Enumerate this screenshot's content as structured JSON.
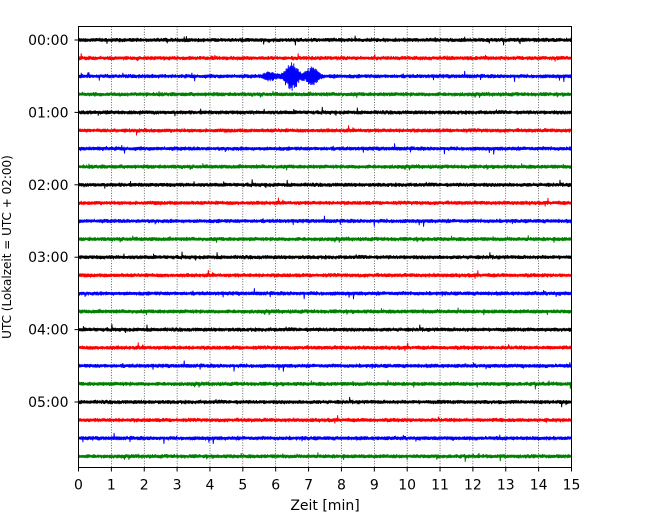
{
  "chart_data": {
    "type": "line",
    "title": "",
    "xlabel": "Zeit  [min]",
    "ylabel": "UTC (Lokalzeit = UTC + 02:00)",
    "xlim": [
      0,
      15
    ],
    "x_ticks": [
      0,
      1,
      2,
      3,
      4,
      5,
      6,
      7,
      8,
      9,
      10,
      11,
      12,
      13,
      14,
      15
    ],
    "y_tick_labels": [
      "00:00",
      "01:00",
      "02:00",
      "03:00",
      "04:00",
      "05:00"
    ],
    "y_tick_rows": [
      0,
      4,
      8,
      12,
      16,
      20
    ],
    "grid": "vertical dotted at each minute",
    "row_minutes": 15,
    "row_colors": [
      "#000000",
      "#ff0000",
      "#0000ff",
      "#008000"
    ],
    "rows": [
      {
        "start": "00:00",
        "color": "#000000"
      },
      {
        "start": "00:15",
        "color": "#ff0000"
      },
      {
        "start": "00:30",
        "color": "#0000ff",
        "event": {
          "center_min": 6.6,
          "extent_min": [
            5.0,
            8.3
          ],
          "peak_half_amplitude": 12
        }
      },
      {
        "start": "00:45",
        "color": "#008000"
      },
      {
        "start": "01:00",
        "color": "#000000"
      },
      {
        "start": "01:15",
        "color": "#ff0000"
      },
      {
        "start": "01:30",
        "color": "#0000ff"
      },
      {
        "start": "01:45",
        "color": "#008000"
      },
      {
        "start": "02:00",
        "color": "#000000"
      },
      {
        "start": "02:15",
        "color": "#ff0000"
      },
      {
        "start": "02:30",
        "color": "#0000ff"
      },
      {
        "start": "02:45",
        "color": "#008000"
      },
      {
        "start": "03:00",
        "color": "#000000"
      },
      {
        "start": "03:15",
        "color": "#ff0000"
      },
      {
        "start": "03:30",
        "color": "#0000ff"
      },
      {
        "start": "03:45",
        "color": "#008000"
      },
      {
        "start": "04:00",
        "color": "#000000"
      },
      {
        "start": "04:15",
        "color": "#ff0000"
      },
      {
        "start": "04:30",
        "color": "#0000ff"
      },
      {
        "start": "04:45",
        "color": "#008000"
      },
      {
        "start": "05:00",
        "color": "#000000"
      },
      {
        "start": "05:15",
        "color": "#ff0000"
      },
      {
        "start": "05:30",
        "color": "#0000ff"
      },
      {
        "start": "05:45",
        "color": "#008000"
      }
    ]
  }
}
